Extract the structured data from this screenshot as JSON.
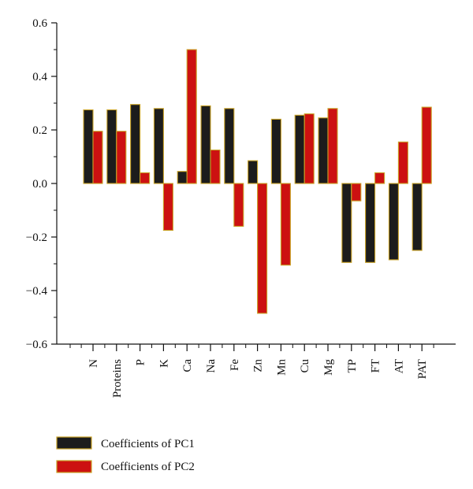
{
  "chart_data": {
    "type": "bar",
    "categories": [
      "N",
      "Proteins",
      "P",
      "K",
      "Ca",
      "Na",
      "Fe",
      "Zn",
      "Mn",
      "Cu",
      "Mg",
      "TP",
      "FT",
      "AT",
      "PAT"
    ],
    "series": [
      {
        "name": "Coefficients of PC1",
        "color": "#1c1c1c",
        "values": [
          0.275,
          0.275,
          0.295,
          0.28,
          0.045,
          0.29,
          0.28,
          0.085,
          0.24,
          0.255,
          0.245,
          -0.295,
          -0.295,
          -0.285,
          -0.25
        ]
      },
      {
        "name": "Coefficients of PC2",
        "color": "#cc1111",
        "values": [
          0.195,
          0.195,
          0.04,
          -0.175,
          0.5,
          0.125,
          -0.16,
          -0.485,
          -0.305,
          0.26,
          0.28,
          -0.065,
          0.04,
          0.155,
          0.285
        ]
      }
    ],
    "ylim": [
      -0.6,
      0.6
    ],
    "yticks": [
      "0.6",
      "0.4",
      "0.2",
      "0.0",
      "−0.2",
      "−0.4",
      "−0.6"
    ],
    "ytick_values": [
      0.6,
      0.4,
      0.2,
      0.0,
      -0.2,
      -0.4,
      -0.6
    ],
    "xlabel": "",
    "ylabel": "",
    "title": "",
    "grid": false,
    "legend_position": "bottom-left",
    "bar_edge_color": "#c9a227"
  }
}
